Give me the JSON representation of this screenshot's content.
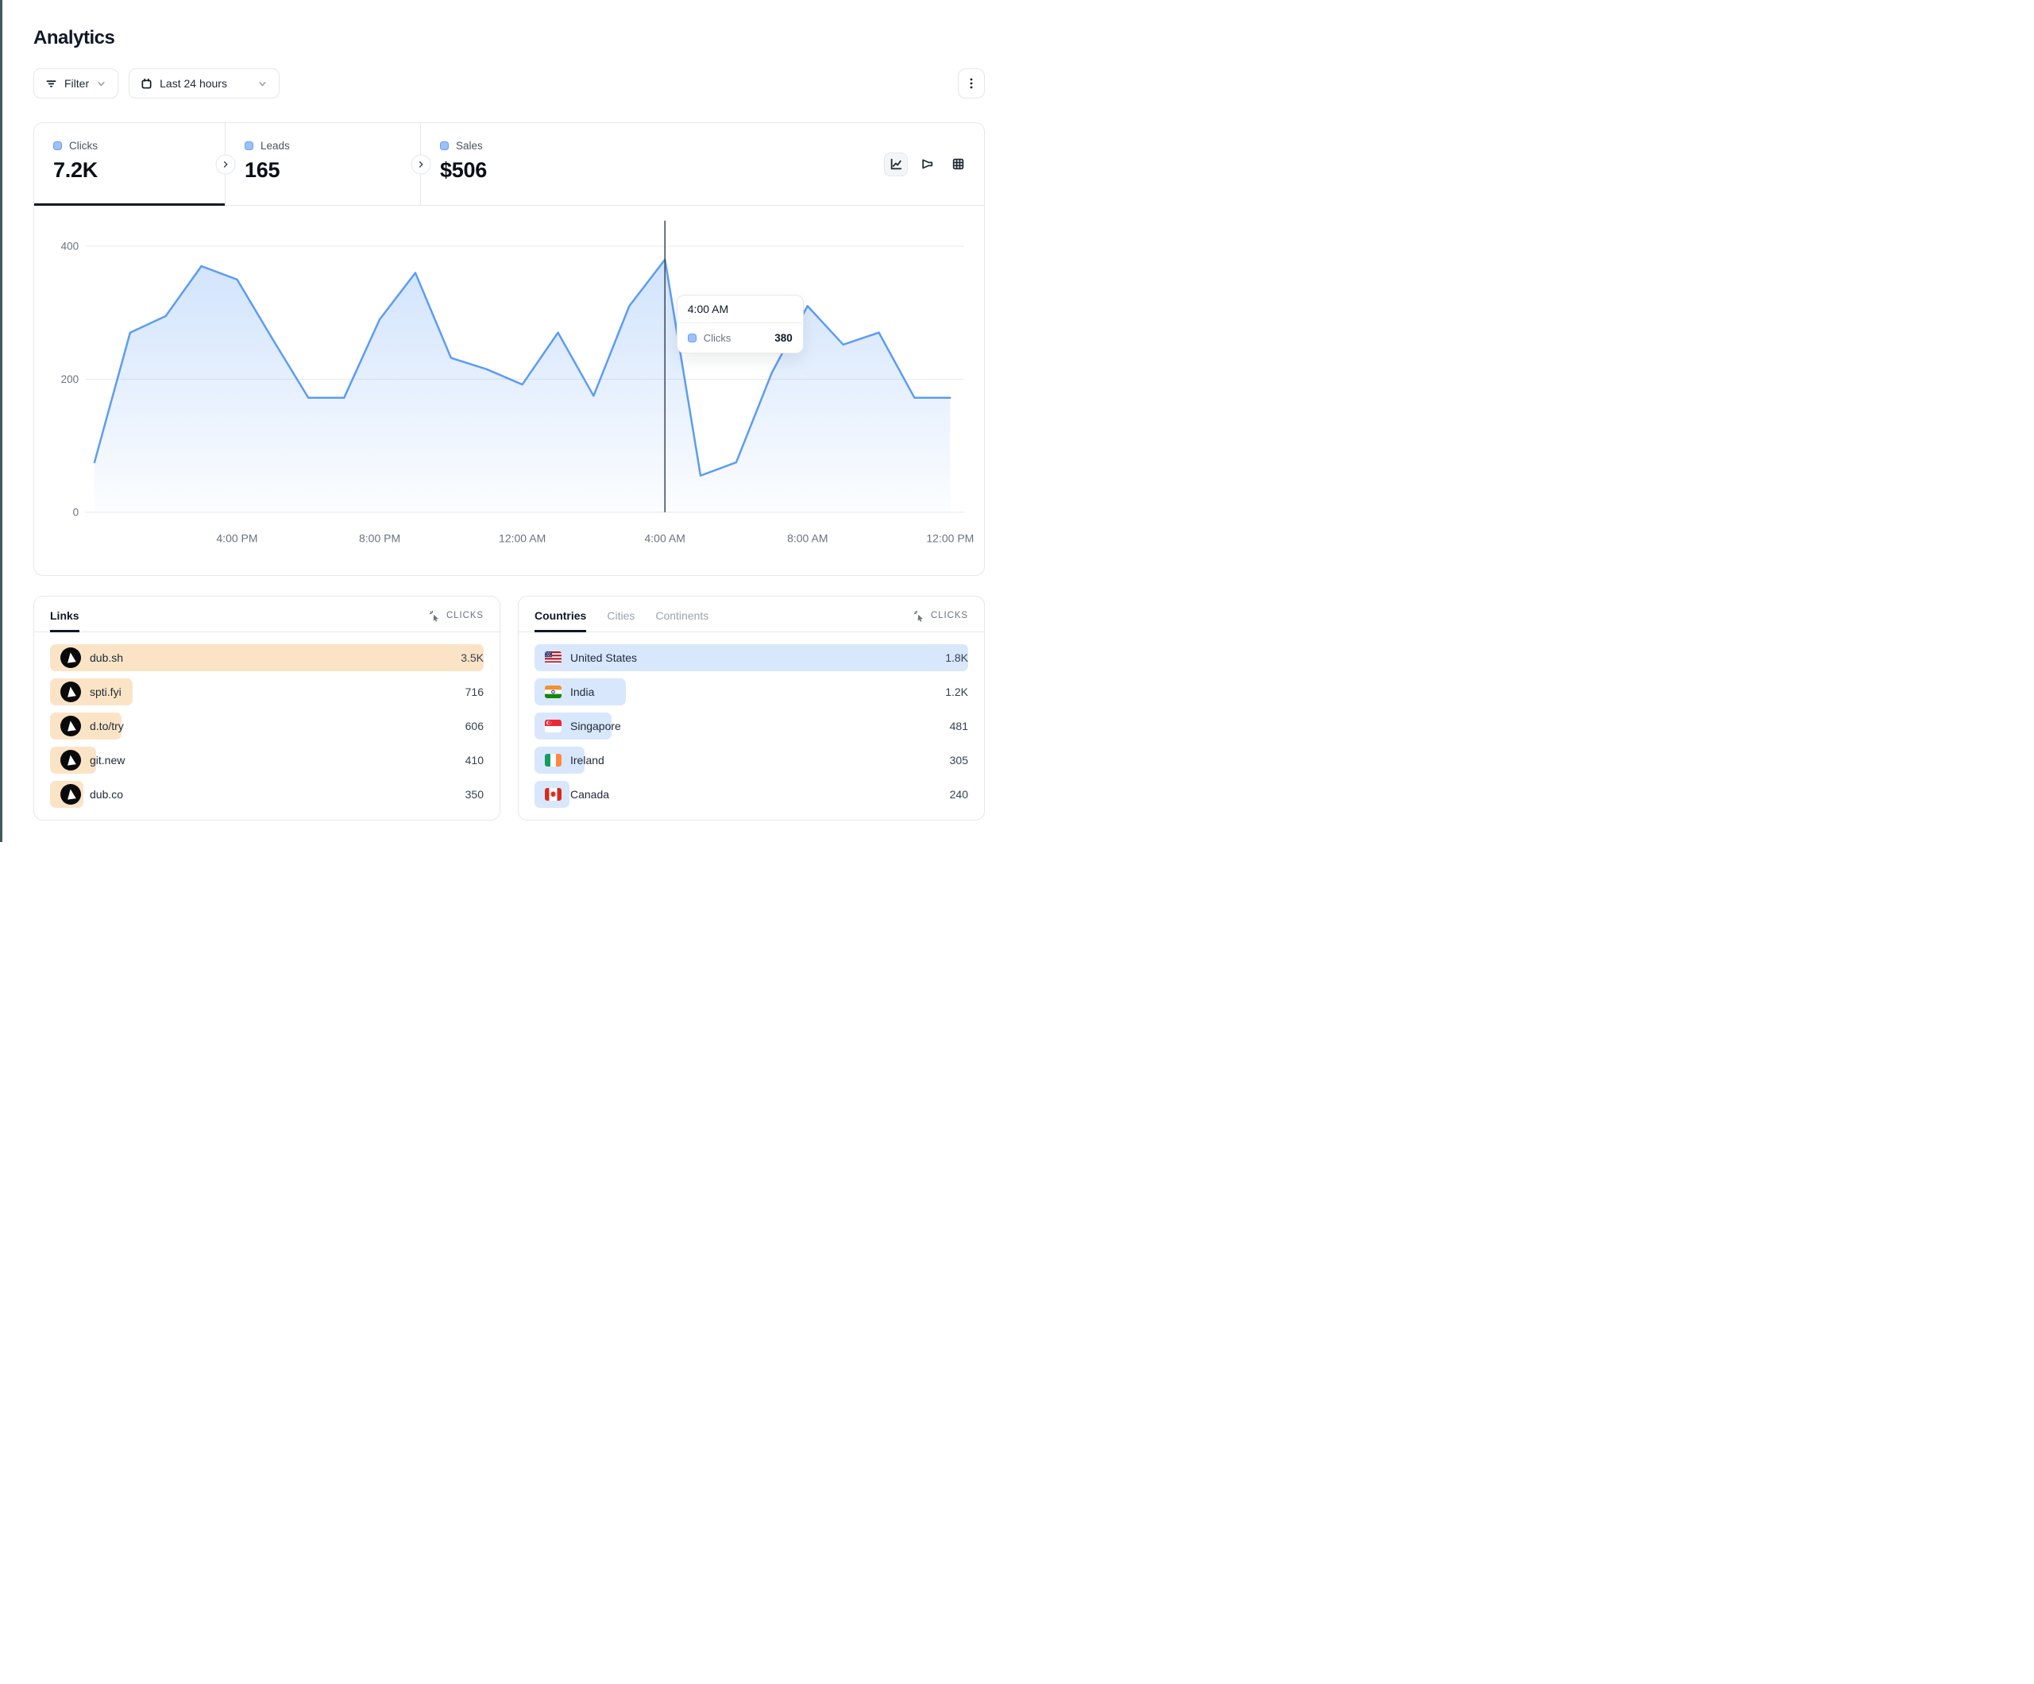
{
  "header": {
    "title": "Analytics"
  },
  "toolbar": {
    "filter_label": "Filter",
    "date_range_label": "Last 24 hours"
  },
  "stats": {
    "tabs": [
      {
        "label": "Clicks",
        "value": "7.2K",
        "active": true
      },
      {
        "label": "Leads",
        "value": "165",
        "active": false
      },
      {
        "label": "Sales",
        "value": "$506",
        "active": false
      }
    ]
  },
  "chart_data": {
    "type": "area",
    "series_name": "Clicks",
    "x": [
      "12:00 PM",
      "1:00 PM",
      "2:00 PM",
      "3:00 PM",
      "4:00 PM",
      "5:00 PM",
      "6:00 PM",
      "7:00 PM",
      "8:00 PM",
      "9:00 PM",
      "10:00 PM",
      "11:00 PM",
      "12:00 AM",
      "1:00 AM",
      "2:00 AM",
      "3:00 AM",
      "4:00 AM",
      "5:00 AM",
      "6:00 AM",
      "7:00 AM",
      "8:00 AM",
      "9:00 AM",
      "10:00 AM",
      "11:00 AM",
      "12:00 PM"
    ],
    "values": [
      75,
      270,
      295,
      370,
      350,
      260,
      172,
      172,
      290,
      360,
      232,
      215,
      192,
      270,
      175,
      310,
      380,
      55,
      75,
      210,
      310,
      252,
      270,
      172,
      172
    ],
    "ylim": [
      0,
      400
    ],
    "yticks": [
      0,
      200,
      400
    ],
    "xtick_indices": [
      4,
      8,
      12,
      16,
      20,
      24
    ],
    "xtick_labels": [
      "4:00 PM",
      "8:00 PM",
      "12:00 AM",
      "4:00 AM",
      "8:00 AM",
      "12:00 PM"
    ],
    "grid": "horizontal",
    "legend_position": "none",
    "line_color": "#5b9cf6",
    "tooltip": {
      "index": 16,
      "title": "4:00 AM",
      "series_label": "Clicks",
      "value": "380"
    }
  },
  "links_panel": {
    "tab_label": "Links",
    "metric_label": "CLICKS",
    "rows": [
      {
        "label": "dub.sh",
        "value": "3.5K",
        "bar_pct": 100
      },
      {
        "label": "spti.fyi",
        "value": "716",
        "bar_pct": 19
      },
      {
        "label": "d.to/try",
        "value": "606",
        "bar_pct": 16.5
      },
      {
        "label": "git.new",
        "value": "410",
        "bar_pct": 10.7
      },
      {
        "label": "dub.co",
        "value": "350",
        "bar_pct": 7.7
      }
    ]
  },
  "countries_panel": {
    "tabs": [
      {
        "label": "Countries",
        "active": true
      },
      {
        "label": "Cities",
        "active": false
      },
      {
        "label": "Continents",
        "active": false
      }
    ],
    "metric_label": "CLICKS",
    "rows": [
      {
        "label": "United States",
        "value": "1.8K",
        "bar_pct": 100,
        "flag": "us"
      },
      {
        "label": "India",
        "value": "1.2K",
        "bar_pct": 21,
        "flag": "in"
      },
      {
        "label": "Singapore",
        "value": "481",
        "bar_pct": 17.8,
        "flag": "sg"
      },
      {
        "label": "Ireland",
        "value": "305",
        "bar_pct": 11.5,
        "flag": "ie"
      },
      {
        "label": "Canada",
        "value": "240",
        "bar_pct": 8,
        "flag": "ca"
      }
    ]
  }
}
